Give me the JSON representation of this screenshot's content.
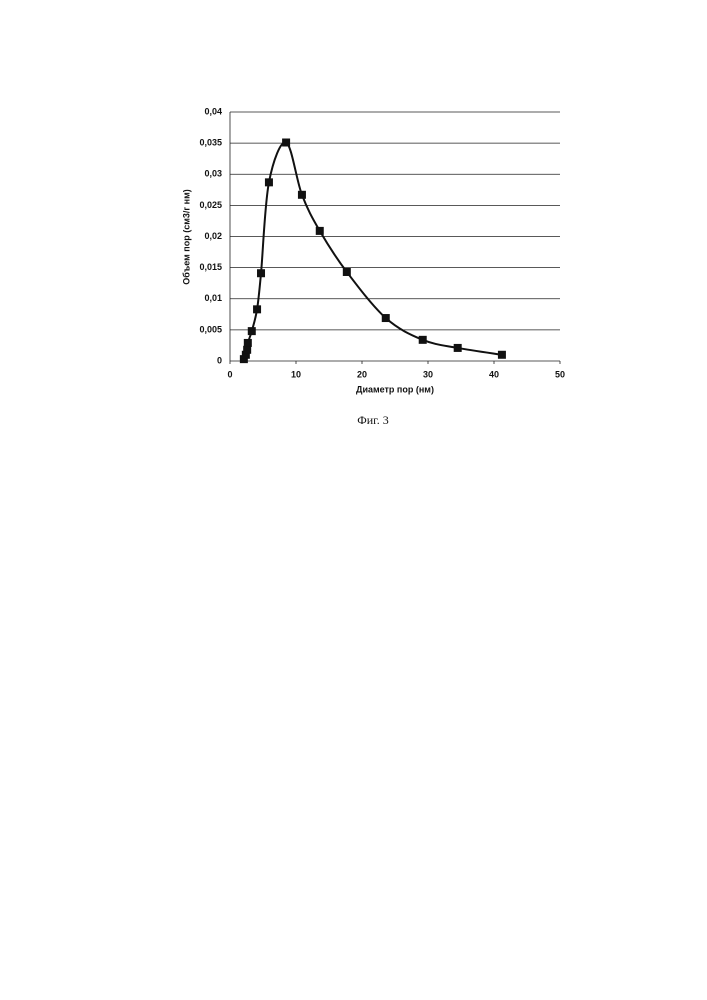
{
  "chart_data": {
    "type": "line",
    "x_label": "Диаметр пор (нм)",
    "y_label": "Объем пор (см3/г нм)",
    "caption": "Фиг. 3",
    "x": [
      2.1,
      2.4,
      2.6,
      2.7,
      3.3,
      4.1,
      4.7,
      5.9,
      8.5,
      10.9,
      13.6,
      17.7,
      23.6,
      29.2,
      34.5,
      41.2
    ],
    "series": [
      {
        "color": "#111111",
        "values": [
          0.0003,
          0.001,
          0.0018,
          0.0029,
          0.0048,
          0.0083,
          0.0141,
          0.0287,
          0.0351,
          0.0267,
          0.0209,
          0.0143,
          0.0069,
          0.0034,
          0.0021,
          0.001
        ]
      }
    ],
    "xlim": [
      0,
      50
    ],
    "xticks": [
      0,
      10,
      20,
      30,
      40,
      50
    ],
    "ylim": [
      0,
      0.04
    ],
    "yticks": [
      0,
      {
        "value": 0.005,
        "label": "0,005"
      },
      {
        "value": 0.01,
        "label": "0,01"
      },
      {
        "value": 0.015,
        "label": "0,015"
      },
      {
        "value": 0.02,
        "label": "0,02"
      },
      {
        "value": 0.025,
        "label": "0,025"
      },
      {
        "value": 0.03,
        "label": "0,03"
      },
      {
        "value": 0.035,
        "label": "0,035"
      },
      {
        "value": 0.04,
        "label": "0,04"
      }
    ],
    "grid": true
  }
}
